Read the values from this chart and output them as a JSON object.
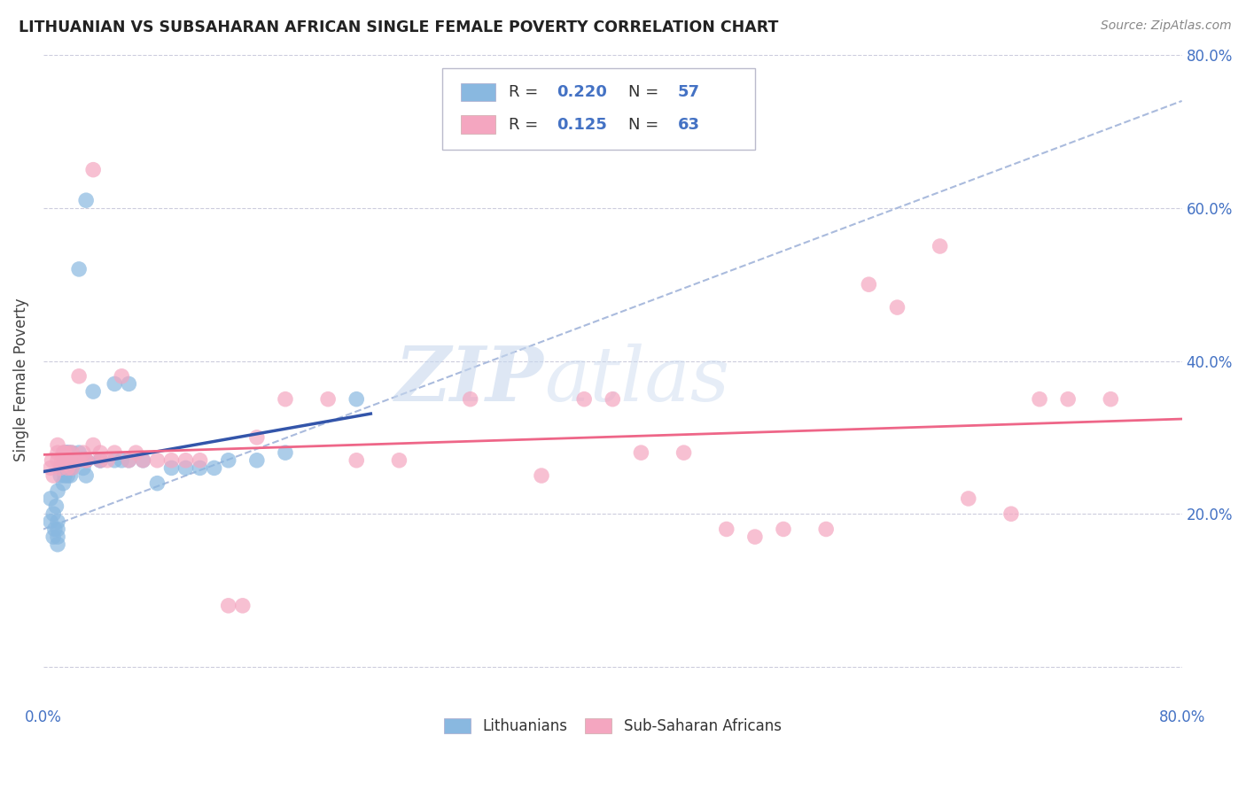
{
  "title": "LITHUANIAN VS SUBSAHARAN AFRICAN SINGLE FEMALE POVERTY CORRELATION CHART",
  "source": "Source: ZipAtlas.com",
  "ylabel": "Single Female Poverty",
  "watermark_zip": "ZIP",
  "watermark_atlas": "atlas",
  "legend_r1_label": "R = ",
  "legend_r1_val": "0.220",
  "legend_n1_label": "N = ",
  "legend_n1_val": "57",
  "legend_r2_label": "R =  ",
  "legend_r2_val": "0.125",
  "legend_n2_label": "N = ",
  "legend_n2_val": "63",
  "color_blue": "#89b8e0",
  "color_pink": "#f4a6c0",
  "trend_blue": "#3355aa",
  "trend_pink": "#ee6688",
  "trend_dash_color": "#aabbdd",
  "background": "#ffffff",
  "grid_color": "#ccccdd",
  "legend_label1": "Lithuanians",
  "legend_label2": "Sub-Saharan Africans",
  "xlim": [
    0.0,
    0.8
  ],
  "ylim": [
    -0.05,
    0.8
  ],
  "blue_x": [
    0.005,
    0.005,
    0.007,
    0.007,
    0.008,
    0.009,
    0.01,
    0.01,
    0.01,
    0.01,
    0.01,
    0.012,
    0.013,
    0.014,
    0.015,
    0.015,
    0.015,
    0.015,
    0.016,
    0.016,
    0.017,
    0.017,
    0.018,
    0.018,
    0.018,
    0.019,
    0.019,
    0.02,
    0.02,
    0.02,
    0.02,
    0.025,
    0.025,
    0.025,
    0.028,
    0.03,
    0.03,
    0.03,
    0.03,
    0.035,
    0.04,
    0.04,
    0.05,
    0.05,
    0.055,
    0.06,
    0.06,
    0.07,
    0.08,
    0.09,
    0.1,
    0.11,
    0.12,
    0.13,
    0.15,
    0.17,
    0.22
  ],
  "blue_y": [
    0.19,
    0.22,
    0.17,
    0.2,
    0.18,
    0.21,
    0.16,
    0.17,
    0.18,
    0.19,
    0.23,
    0.25,
    0.26,
    0.24,
    0.25,
    0.26,
    0.27,
    0.28,
    0.27,
    0.28,
    0.25,
    0.28,
    0.26,
    0.27,
    0.28,
    0.25,
    0.27,
    0.26,
    0.27,
    0.27,
    0.28,
    0.27,
    0.28,
    0.52,
    0.26,
    0.25,
    0.27,
    0.27,
    0.61,
    0.36,
    0.27,
    0.27,
    0.27,
    0.37,
    0.27,
    0.27,
    0.37,
    0.27,
    0.24,
    0.26,
    0.26,
    0.26,
    0.26,
    0.27,
    0.27,
    0.28,
    0.35
  ],
  "pink_x": [
    0.005,
    0.006,
    0.007,
    0.01,
    0.01,
    0.01,
    0.012,
    0.013,
    0.014,
    0.015,
    0.015,
    0.016,
    0.017,
    0.018,
    0.018,
    0.02,
    0.02,
    0.02,
    0.022,
    0.025,
    0.025,
    0.028,
    0.03,
    0.03,
    0.035,
    0.035,
    0.04,
    0.04,
    0.045,
    0.05,
    0.055,
    0.06,
    0.065,
    0.07,
    0.08,
    0.09,
    0.1,
    0.11,
    0.13,
    0.14,
    0.15,
    0.17,
    0.2,
    0.22,
    0.25,
    0.3,
    0.35,
    0.38,
    0.4,
    0.42,
    0.45,
    0.48,
    0.5,
    0.52,
    0.55,
    0.58,
    0.6,
    0.63,
    0.65,
    0.68,
    0.7,
    0.72,
    0.75
  ],
  "pink_y": [
    0.26,
    0.27,
    0.25,
    0.27,
    0.28,
    0.29,
    0.26,
    0.27,
    0.28,
    0.27,
    0.28,
    0.27,
    0.26,
    0.27,
    0.28,
    0.26,
    0.27,
    0.28,
    0.27,
    0.27,
    0.38,
    0.28,
    0.27,
    0.27,
    0.29,
    0.65,
    0.27,
    0.28,
    0.27,
    0.28,
    0.38,
    0.27,
    0.28,
    0.27,
    0.27,
    0.27,
    0.27,
    0.27,
    0.08,
    0.08,
    0.3,
    0.35,
    0.35,
    0.27,
    0.27,
    0.35,
    0.25,
    0.35,
    0.35,
    0.28,
    0.28,
    0.18,
    0.17,
    0.18,
    0.18,
    0.5,
    0.47,
    0.55,
    0.22,
    0.2,
    0.35,
    0.35,
    0.35
  ]
}
